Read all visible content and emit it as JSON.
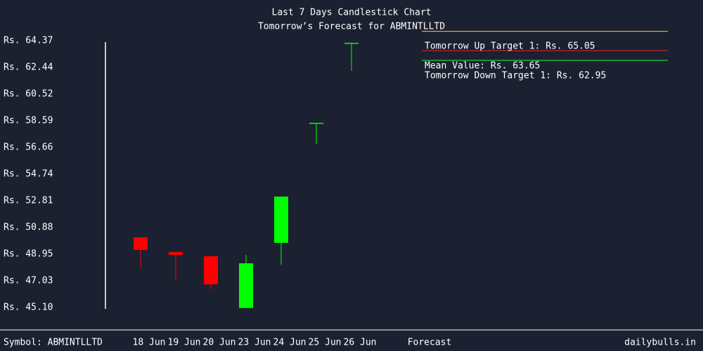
{
  "chart_data": {
    "type": "candlestick",
    "title": "Last 7 Days Candlestick Chart",
    "subtitle": "Tomorrow’s Forecast for ABMINTLLTD",
    "categories": [
      "18 Jun",
      "19 Jun",
      "20 Jun",
      "23 Jun",
      "24 Jun",
      "25 Jun",
      "26 Jun"
    ],
    "open": [
      50.17,
      49.11,
      48.8,
      45.06,
      49.77,
      58.44,
      64.22
    ],
    "high": [
      50.17,
      49.11,
      48.8,
      48.9,
      53.11,
      58.44,
      64.22
    ],
    "low": [
      47.94,
      47.03,
      46.42,
      45.06,
      48.19,
      56.92,
      62.19
    ],
    "close": [
      49.26,
      48.9,
      46.77,
      48.29,
      53.11,
      58.44,
      64.22
    ],
    "up_color": "#00ff00",
    "down_color": "#ff0000",
    "ylim": [
      45.1,
      64.37
    ],
    "yticks": [
      {
        "value": 45.1,
        "label": "Rs. 45.10"
      },
      {
        "value": 47.03,
        "label": "Rs. 47.03"
      },
      {
        "value": 48.95,
        "label": "Rs. 48.95"
      },
      {
        "value": 50.88,
        "label": "Rs. 50.88"
      },
      {
        "value": 52.81,
        "label": "Rs. 52.81"
      },
      {
        "value": 54.74,
        "label": "Rs. 54.74"
      },
      {
        "value": 56.66,
        "label": "Rs. 56.66"
      },
      {
        "value": 58.59,
        "label": "Rs. 58.59"
      },
      {
        "value": 60.52,
        "label": "Rs. 60.52"
      },
      {
        "value": 62.44,
        "label": "Rs. 62.44"
      },
      {
        "value": 64.37,
        "label": "Rs. 64.37"
      }
    ],
    "forecast": [
      {
        "label": "Tomorrow Up Target 1: Rs. 65.05",
        "value": 65.05,
        "color": "#f0a030"
      },
      {
        "label": "Mean Value: Rs. 63.65",
        "value": 63.65,
        "color": "#e0202a"
      },
      {
        "label": "Tomorrow Down Target 1: Rs. 62.95",
        "value": 62.95,
        "color": "#20d040"
      }
    ],
    "forecast_label": "Forecast",
    "symbol": "Symbol: ABMINTLLTD",
    "source": "dailybulls.in"
  }
}
